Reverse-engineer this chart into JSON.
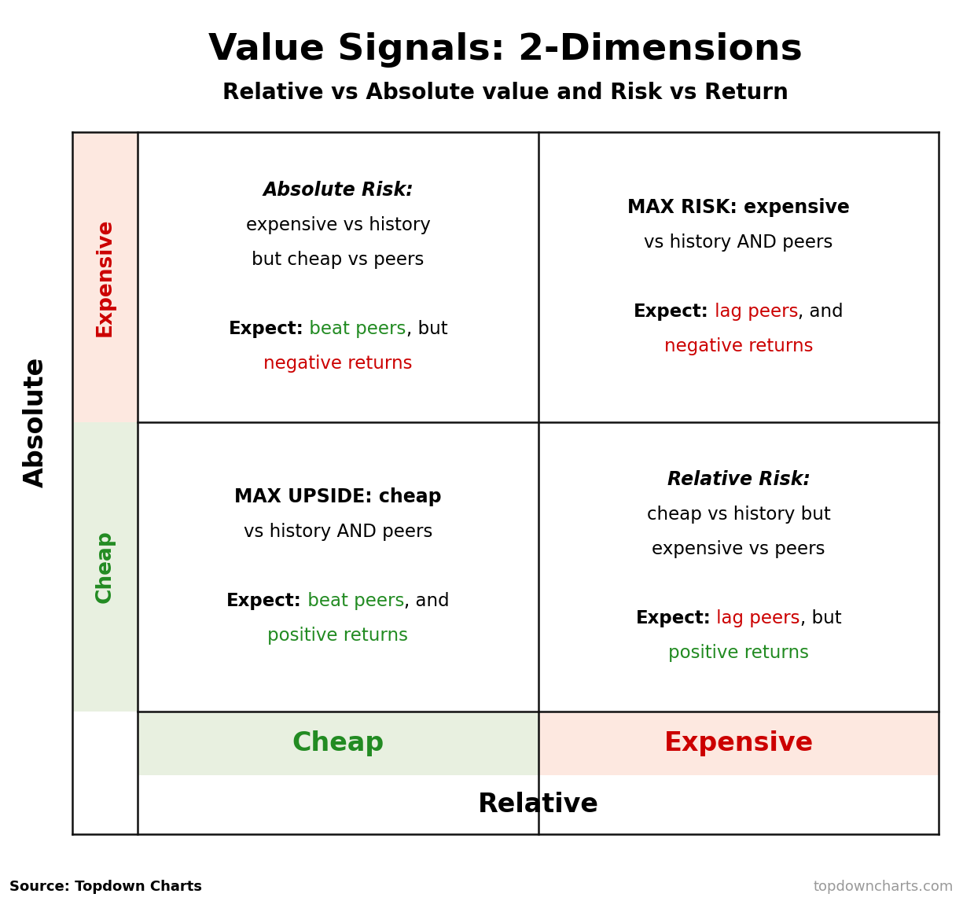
{
  "title": "Value Signals: 2-Dimensions",
  "subtitle": "Relative vs Absolute value and Risk vs Return",
  "title_fontsize": 34,
  "subtitle_fontsize": 20,
  "axis_label_absolute": "Absolute",
  "axis_label_relative": "Relative",
  "side_label_expensive": "Expensive",
  "side_label_cheap": "Cheap",
  "bottom_label_cheap": "Cheap",
  "bottom_label_expensive": "Expensive",
  "source_left": "Source: Topdown Charts",
  "source_right": "topdowncharts.com",
  "color_expensive_bg": "#fde8e0",
  "color_cheap_bg": "#e8f0e0",
  "color_border": "#111111",
  "color_red": "#cc0000",
  "color_green": "#228B22",
  "color_black": "#000000",
  "color_gray": "#999999",
  "cells": [
    {
      "row": 0,
      "col": 0,
      "title": "Absolute Risk:",
      "title_bold": true,
      "title_italic": true,
      "lines": [
        [
          {
            "text": "expensive vs history",
            "color": "#000000",
            "bold": false,
            "italic": false
          }
        ],
        [
          {
            "text": "but cheap vs peers",
            "color": "#000000",
            "bold": false,
            "italic": false
          }
        ],
        [],
        [
          {
            "text": "Expect:",
            "color": "#000000",
            "bold": true,
            "italic": false
          },
          {
            "text": " beat peers",
            "color": "#228B22",
            "bold": false,
            "italic": false
          },
          {
            "text": ", but",
            "color": "#000000",
            "bold": false,
            "italic": false
          }
        ],
        [
          {
            "text": "negative returns",
            "color": "#cc0000",
            "bold": false,
            "italic": false
          }
        ]
      ]
    },
    {
      "row": 0,
      "col": 1,
      "title": "MAX RISK: expensive",
      "title_bold": true,
      "title_italic": false,
      "lines": [
        [
          {
            "text": "vs history AND peers",
            "color": "#000000",
            "bold": false,
            "italic": false
          }
        ],
        [],
        [
          {
            "text": "Expect:",
            "color": "#000000",
            "bold": true,
            "italic": false
          },
          {
            "text": " lag peers",
            "color": "#cc0000",
            "bold": false,
            "italic": false
          },
          {
            "text": ", and",
            "color": "#000000",
            "bold": false,
            "italic": false
          }
        ],
        [
          {
            "text": "negative returns",
            "color": "#cc0000",
            "bold": false,
            "italic": false
          }
        ]
      ]
    },
    {
      "row": 1,
      "col": 0,
      "title": "MAX UPSIDE: cheap",
      "title_bold": true,
      "title_italic": false,
      "lines": [
        [
          {
            "text": "vs history AND peers",
            "color": "#000000",
            "bold": false,
            "italic": false
          }
        ],
        [],
        [
          {
            "text": "Expect:",
            "color": "#000000",
            "bold": true,
            "italic": false
          },
          {
            "text": " beat peers",
            "color": "#228B22",
            "bold": false,
            "italic": false
          },
          {
            "text": ", and",
            "color": "#000000",
            "bold": false,
            "italic": false
          }
        ],
        [
          {
            "text": "positive returns",
            "color": "#228B22",
            "bold": false,
            "italic": false
          }
        ]
      ]
    },
    {
      "row": 1,
      "col": 1,
      "title": "Relative Risk:",
      "title_bold": true,
      "title_italic": true,
      "lines": [
        [
          {
            "text": "cheap vs history but",
            "color": "#000000",
            "bold": false,
            "italic": false
          }
        ],
        [
          {
            "text": "expensive vs peers",
            "color": "#000000",
            "bold": false,
            "italic": false
          }
        ],
        [],
        [
          {
            "text": "Expect:",
            "color": "#000000",
            "bold": true,
            "italic": false
          },
          {
            "text": " lag peers",
            "color": "#cc0000",
            "bold": false,
            "italic": false
          },
          {
            "text": ", but",
            "color": "#000000",
            "bold": false,
            "italic": false
          }
        ],
        [
          {
            "text": "positive returns",
            "color": "#228B22",
            "bold": false,
            "italic": false
          }
        ]
      ]
    }
  ]
}
